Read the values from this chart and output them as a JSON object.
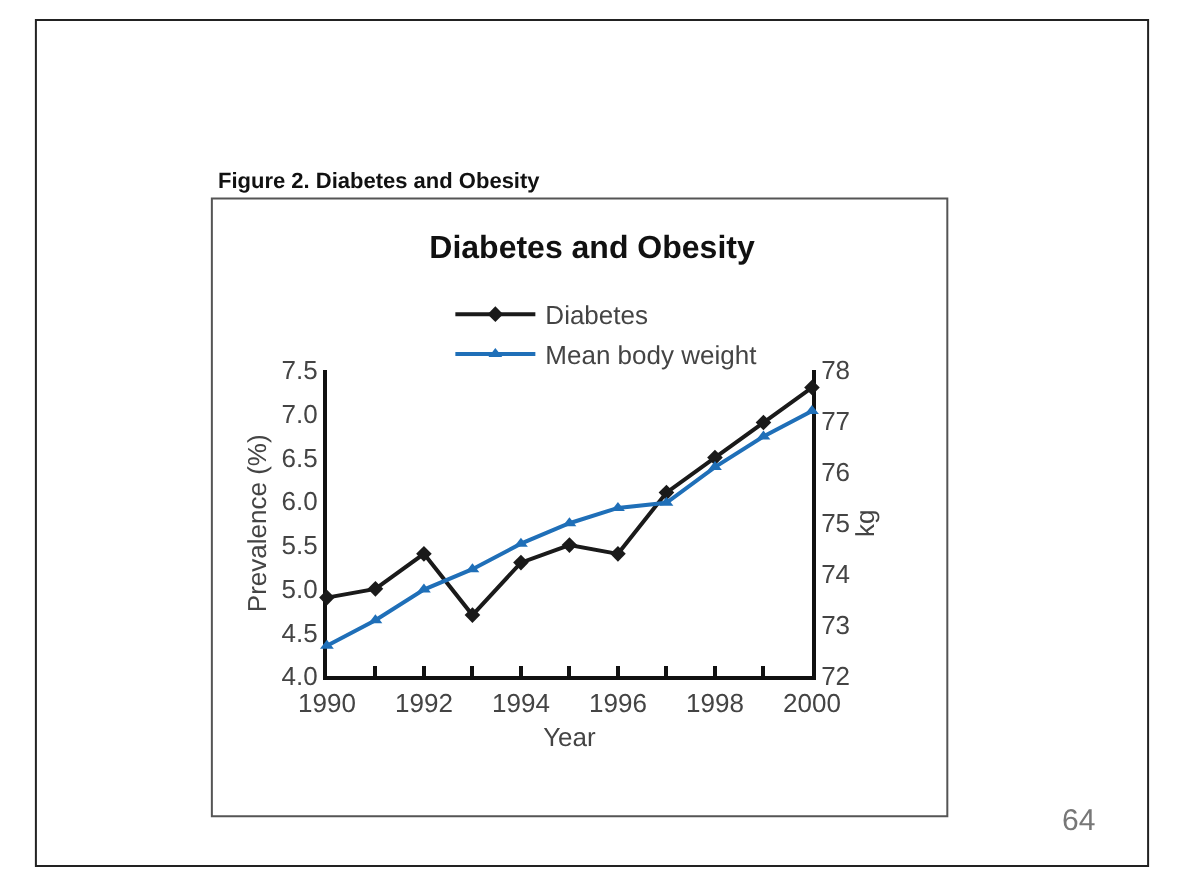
{
  "chart_data": {
    "type": "line",
    "title": "Diabetes and Obesity",
    "xlabel": "Year",
    "ylabel": "Prevalence (%)",
    "y2label": "kg",
    "x": [
      1990,
      1991,
      1992,
      1993,
      1994,
      1995,
      1996,
      1997,
      1998,
      1999,
      2000
    ],
    "series": [
      {
        "name": "Diabetes",
        "color": "#1a1a1a",
        "marker": "diamond",
        "values": [
          4.9,
          5.0,
          5.4,
          4.7,
          5.3,
          5.5,
          5.4,
          6.1,
          6.5,
          6.9,
          7.3
        ]
      },
      {
        "name": "Mean body weight",
        "color": "#1f6fb8",
        "marker": "triangle",
        "axis": "y2",
        "values": [
          72.6,
          73.1,
          73.7,
          74.1,
          74.6,
          75.0,
          75.3,
          75.4,
          76.1,
          76.7,
          77.2
        ]
      }
    ],
    "xlim": [
      1990,
      2000
    ],
    "xticks": [
      1990,
      {
        "value": 1991,
        "label": null
      },
      1992,
      {
        "value": 1993,
        "label": null
      },
      1994,
      {
        "value": 1995,
        "label": null
      },
      1996,
      {
        "value": 1997,
        "label": null
      },
      1998,
      {
        "value": 1999,
        "label": null
      },
      2000
    ],
    "ylim": [
      4.0,
      7.5
    ],
    "yticks": [
      {
        "value": 4.0,
        "label": "4.0"
      },
      4.5,
      {
        "value": 5.0,
        "label": "5.0"
      },
      5.5,
      {
        "value": 6.0,
        "label": "6.0"
      },
      6.5,
      {
        "value": 7.0,
        "label": "7.0"
      },
      7.5
    ],
    "y2lim": [
      72,
      78
    ],
    "y2ticks": [
      72,
      73,
      74,
      75,
      76,
      77,
      78
    ],
    "legend": "top",
    "line_style": "solid",
    "annotations": [
      "Figure 2. Diabetes and Obesity",
      "64"
    ]
  }
}
